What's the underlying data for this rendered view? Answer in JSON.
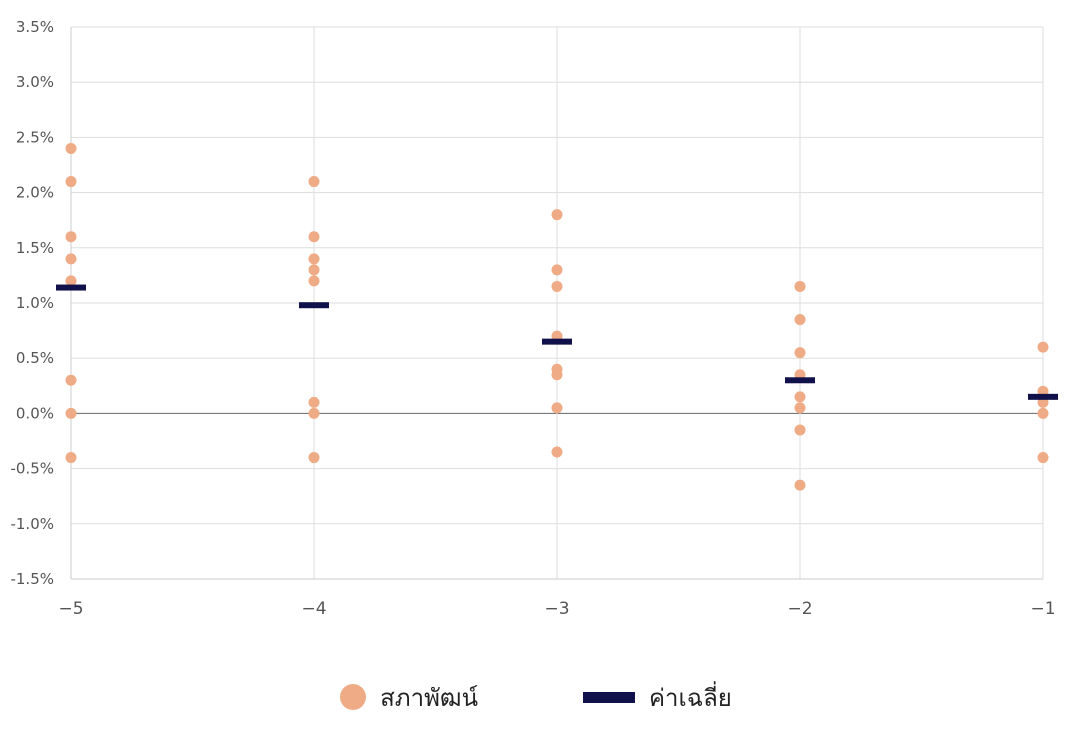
{
  "chart_data": {
    "type": "scatter",
    "x_ticks": [
      "−5",
      "−4",
      "−3",
      "−2",
      "−1"
    ],
    "x_values": [
      -5,
      -4,
      -3,
      -2,
      -1
    ],
    "y_ticks": [
      "3.5%",
      "3.0%",
      "2.5%",
      "2.0%",
      "1.5%",
      "1.0%",
      "0.5%",
      "0.0%",
      "-0.5%",
      "-1.0%",
      "-1.5%"
    ],
    "y_tick_values": [
      3.5,
      3.0,
      2.5,
      2.0,
      1.5,
      1.0,
      0.5,
      0.0,
      -0.5,
      -1.0,
      -1.5
    ],
    "ylim": [
      -1.5,
      3.5
    ],
    "xlim": [
      -5,
      -1
    ],
    "grid": true,
    "legend_position": "bottom-center",
    "series": [
      {
        "name": "สภาพัฒน์",
        "marker": "circle",
        "color": "#EFAB85",
        "points": [
          {
            "x": -5,
            "y": 2.4
          },
          {
            "x": -5,
            "y": 2.1
          },
          {
            "x": -5,
            "y": 1.6
          },
          {
            "x": -5,
            "y": 1.4
          },
          {
            "x": -5,
            "y": 1.2
          },
          {
            "x": -5,
            "y": 0.3
          },
          {
            "x": -5,
            "y": 0.0
          },
          {
            "x": -5,
            "y": -0.4
          },
          {
            "x": -4,
            "y": 2.1
          },
          {
            "x": -4,
            "y": 1.6
          },
          {
            "x": -4,
            "y": 1.4
          },
          {
            "x": -4,
            "y": 1.3
          },
          {
            "x": -4,
            "y": 1.2
          },
          {
            "x": -4,
            "y": 0.1
          },
          {
            "x": -4,
            "y": 0.0
          },
          {
            "x": -4,
            "y": -0.4
          },
          {
            "x": -3,
            "y": 1.8
          },
          {
            "x": -3,
            "y": 1.3
          },
          {
            "x": -3,
            "y": 1.15
          },
          {
            "x": -3,
            "y": 0.7
          },
          {
            "x": -3,
            "y": 0.4
          },
          {
            "x": -3,
            "y": 0.35
          },
          {
            "x": -3,
            "y": 0.05
          },
          {
            "x": -3,
            "y": -0.35
          },
          {
            "x": -2,
            "y": 1.15
          },
          {
            "x": -2,
            "y": 0.85
          },
          {
            "x": -2,
            "y": 0.55
          },
          {
            "x": -2,
            "y": 0.35
          },
          {
            "x": -2,
            "y": 0.15
          },
          {
            "x": -2,
            "y": 0.05
          },
          {
            "x": -2,
            "y": -0.15
          },
          {
            "x": -2,
            "y": -0.65
          },
          {
            "x": -1,
            "y": 0.6
          },
          {
            "x": -1,
            "y": 0.2
          },
          {
            "x": -1,
            "y": 0.1
          },
          {
            "x": -1,
            "y": 0.0
          },
          {
            "x": -1,
            "y": -0.4
          }
        ]
      },
      {
        "name": "ค่าเฉลี่ย",
        "marker": "dash",
        "color": "#10104A",
        "points": [
          {
            "x": -5,
            "y": 1.14
          },
          {
            "x": -4,
            "y": 0.98
          },
          {
            "x": -3,
            "y": 0.65
          },
          {
            "x": -2,
            "y": 0.3
          },
          {
            "x": -1,
            "y": 0.15
          }
        ]
      }
    ]
  },
  "legend": {
    "item_1": "สภาพัฒน์",
    "item_2": "ค่าเฉลี่ย"
  }
}
